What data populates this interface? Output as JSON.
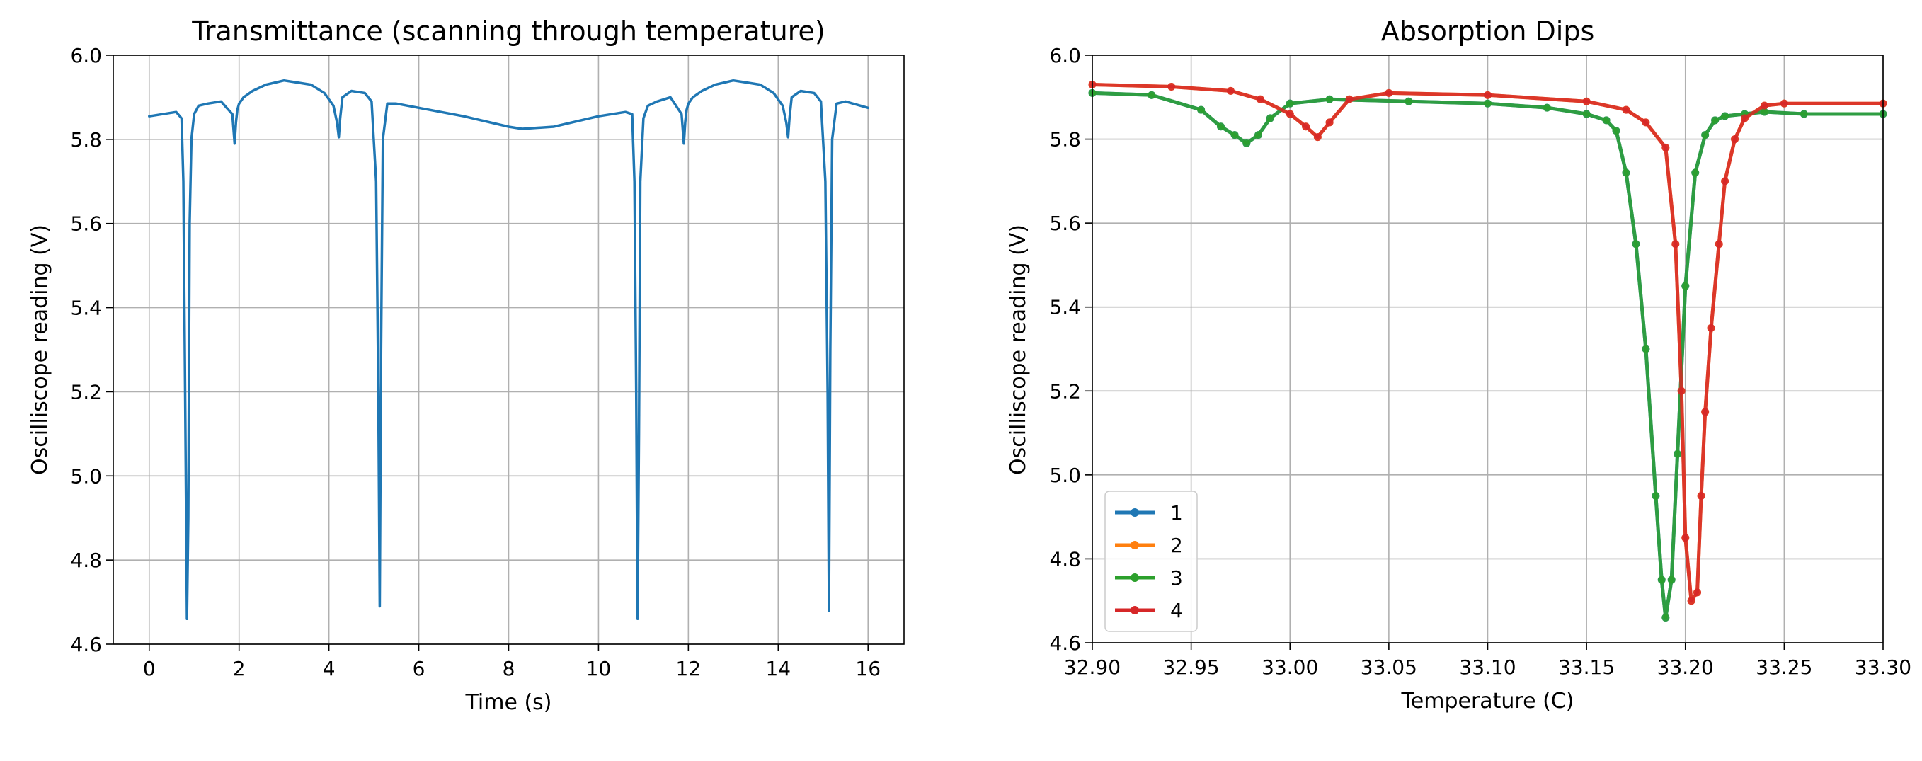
{
  "chart_data": [
    {
      "type": "line",
      "title": "Transmittance (scanning through temperature)",
      "xlabel": "Time (s)",
      "ylabel": "Oscilliscope reading (V)",
      "xlim": [
        -0.8,
        16.8
      ],
      "ylim": [
        4.6,
        6.0
      ],
      "xticks": [
        0,
        2,
        4,
        6,
        8,
        10,
        12,
        14,
        16
      ],
      "yticks": [
        4.6,
        4.8,
        5.0,
        5.2,
        5.4,
        5.6,
        5.8,
        6.0
      ],
      "grid": true,
      "series": [
        {
          "color": "#1f77b4",
          "x": [
            0.0,
            0.3,
            0.6,
            0.72,
            0.76,
            0.8,
            0.84,
            0.87,
            0.9,
            0.94,
            1.0,
            1.1,
            1.3,
            1.6,
            1.85,
            1.9,
            1.93,
            1.96,
            2.0,
            2.1,
            2.3,
            2.6,
            3.0,
            3.3,
            3.6,
            3.9,
            4.1,
            4.18,
            4.22,
            4.25,
            4.3,
            4.5,
            4.8,
            4.95,
            5.05,
            5.1,
            5.13,
            5.16,
            5.2,
            5.3,
            5.5,
            6.0,
            7.0,
            8.0,
            8.3,
            9.0,
            10.0,
            10.6,
            10.75,
            10.8,
            10.84,
            10.87,
            10.9,
            10.93,
            11.0,
            11.1,
            11.3,
            11.6,
            11.85,
            11.9,
            11.93,
            11.96,
            12.0,
            12.1,
            12.3,
            12.6,
            13.0,
            13.3,
            13.6,
            13.9,
            14.1,
            14.18,
            14.22,
            14.25,
            14.3,
            14.5,
            14.8,
            14.95,
            15.05,
            15.1,
            15.13,
            15.16,
            15.2,
            15.3,
            15.5,
            16.0
          ],
          "y": [
            5.855,
            5.86,
            5.865,
            5.85,
            5.7,
            5.2,
            4.66,
            4.9,
            5.6,
            5.8,
            5.86,
            5.88,
            5.885,
            5.89,
            5.86,
            5.79,
            5.84,
            5.87,
            5.885,
            5.9,
            5.915,
            5.93,
            5.94,
            5.935,
            5.93,
            5.91,
            5.88,
            5.84,
            5.805,
            5.85,
            5.9,
            5.915,
            5.91,
            5.89,
            5.7,
            5.2,
            4.69,
            5.3,
            5.8,
            5.885,
            5.885,
            5.875,
            5.855,
            5.83,
            5.825,
            5.83,
            5.855,
            5.865,
            5.86,
            5.7,
            5.2,
            4.66,
            5.1,
            5.7,
            5.85,
            5.88,
            5.89,
            5.9,
            5.86,
            5.79,
            5.84,
            5.87,
            5.885,
            5.9,
            5.915,
            5.93,
            5.94,
            5.935,
            5.93,
            5.91,
            5.88,
            5.84,
            5.805,
            5.85,
            5.9,
            5.915,
            5.91,
            5.89,
            5.7,
            5.2,
            4.68,
            5.3,
            5.8,
            5.885,
            5.89,
            5.875
          ]
        }
      ]
    },
    {
      "type": "line",
      "title": "Absorption Dips",
      "xlabel": "Temperature (C)",
      "ylabel": "Oscilliscope reading (V)",
      "xlim": [
        32.9,
        33.3
      ],
      "ylim": [
        4.6,
        6.0
      ],
      "xticks": [
        32.9,
        32.95,
        33.0,
        33.05,
        33.1,
        33.15,
        33.2,
        33.25,
        33.3
      ],
      "xtick_labels": [
        "32.90",
        "32.95",
        "33.00",
        "33.05",
        "33.10",
        "33.15",
        "33.20",
        "33.25",
        "33.30"
      ],
      "yticks": [
        4.6,
        4.8,
        5.0,
        5.2,
        5.4,
        5.6,
        5.8,
        6.0
      ],
      "grid": true,
      "legend": "lower-left",
      "series": [
        {
          "name": "1",
          "color": "#1f77b4",
          "x": [
            32.9,
            32.93,
            32.955,
            32.965,
            32.972,
            32.978,
            32.984,
            32.99,
            33.0,
            33.02,
            33.06,
            33.1,
            33.13,
            33.15,
            33.16,
            33.165,
            33.17,
            33.175,
            33.18,
            33.185,
            33.188,
            33.19,
            33.193,
            33.196,
            33.2,
            33.205,
            33.21,
            33.215,
            33.22,
            33.23,
            33.24,
            33.26,
            33.3
          ],
          "y": [
            5.91,
            5.905,
            5.87,
            5.83,
            5.81,
            5.79,
            5.81,
            5.85,
            5.885,
            5.895,
            5.89,
            5.885,
            5.875,
            5.86,
            5.845,
            5.82,
            5.72,
            5.55,
            5.3,
            4.95,
            4.75,
            4.66,
            4.75,
            5.05,
            5.45,
            5.72,
            5.81,
            5.845,
            5.855,
            5.86,
            5.865,
            5.86,
            5.86
          ]
        },
        {
          "name": "2",
          "color": "#ff7f0e",
          "x": [
            32.9,
            32.94,
            32.97,
            32.985,
            33.0,
            33.008,
            33.014,
            33.02,
            33.03,
            33.05,
            33.1,
            33.15,
            33.17,
            33.18,
            33.19,
            33.195,
            33.198,
            33.2,
            33.203,
            33.206,
            33.208,
            33.21,
            33.213,
            33.217,
            33.22,
            33.225,
            33.23,
            33.24,
            33.25,
            33.3
          ],
          "y": [
            5.93,
            5.925,
            5.915,
            5.895,
            5.86,
            5.83,
            5.805,
            5.84,
            5.895,
            5.91,
            5.905,
            5.89,
            5.87,
            5.84,
            5.78,
            5.55,
            5.2,
            4.85,
            4.7,
            4.72,
            4.95,
            5.15,
            5.35,
            5.55,
            5.7,
            5.8,
            5.85,
            5.88,
            5.885,
            5.885
          ]
        },
        {
          "name": "3",
          "color": "#2ca02c",
          "x": [
            32.9,
            32.93,
            32.955,
            32.965,
            32.972,
            32.978,
            32.984,
            32.99,
            33.0,
            33.02,
            33.06,
            33.1,
            33.13,
            33.15,
            33.16,
            33.165,
            33.17,
            33.175,
            33.18,
            33.185,
            33.188,
            33.19,
            33.193,
            33.196,
            33.2,
            33.205,
            33.21,
            33.215,
            33.22,
            33.23,
            33.24,
            33.26,
            33.3
          ],
          "y": [
            5.91,
            5.905,
            5.87,
            5.83,
            5.81,
            5.79,
            5.81,
            5.85,
            5.885,
            5.895,
            5.89,
            5.885,
            5.875,
            5.86,
            5.845,
            5.82,
            5.72,
            5.55,
            5.3,
            4.95,
            4.75,
            4.66,
            4.75,
            5.05,
            5.45,
            5.72,
            5.81,
            5.845,
            5.855,
            5.86,
            5.865,
            5.86,
            5.86
          ]
        },
        {
          "name": "4",
          "color": "#d62728",
          "x": [
            32.9,
            32.94,
            32.97,
            32.985,
            33.0,
            33.008,
            33.014,
            33.02,
            33.03,
            33.05,
            33.1,
            33.15,
            33.17,
            33.18,
            33.19,
            33.195,
            33.198,
            33.2,
            33.203,
            33.206,
            33.208,
            33.21,
            33.213,
            33.217,
            33.22,
            33.225,
            33.23,
            33.24,
            33.25,
            33.3
          ],
          "y": [
            5.93,
            5.925,
            5.915,
            5.895,
            5.86,
            5.83,
            5.805,
            5.84,
            5.895,
            5.91,
            5.905,
            5.89,
            5.87,
            5.84,
            5.78,
            5.55,
            5.2,
            4.85,
            4.7,
            4.72,
            4.95,
            5.15,
            5.35,
            5.55,
            5.7,
            5.8,
            5.85,
            5.88,
            5.885,
            5.885
          ]
        }
      ]
    }
  ]
}
